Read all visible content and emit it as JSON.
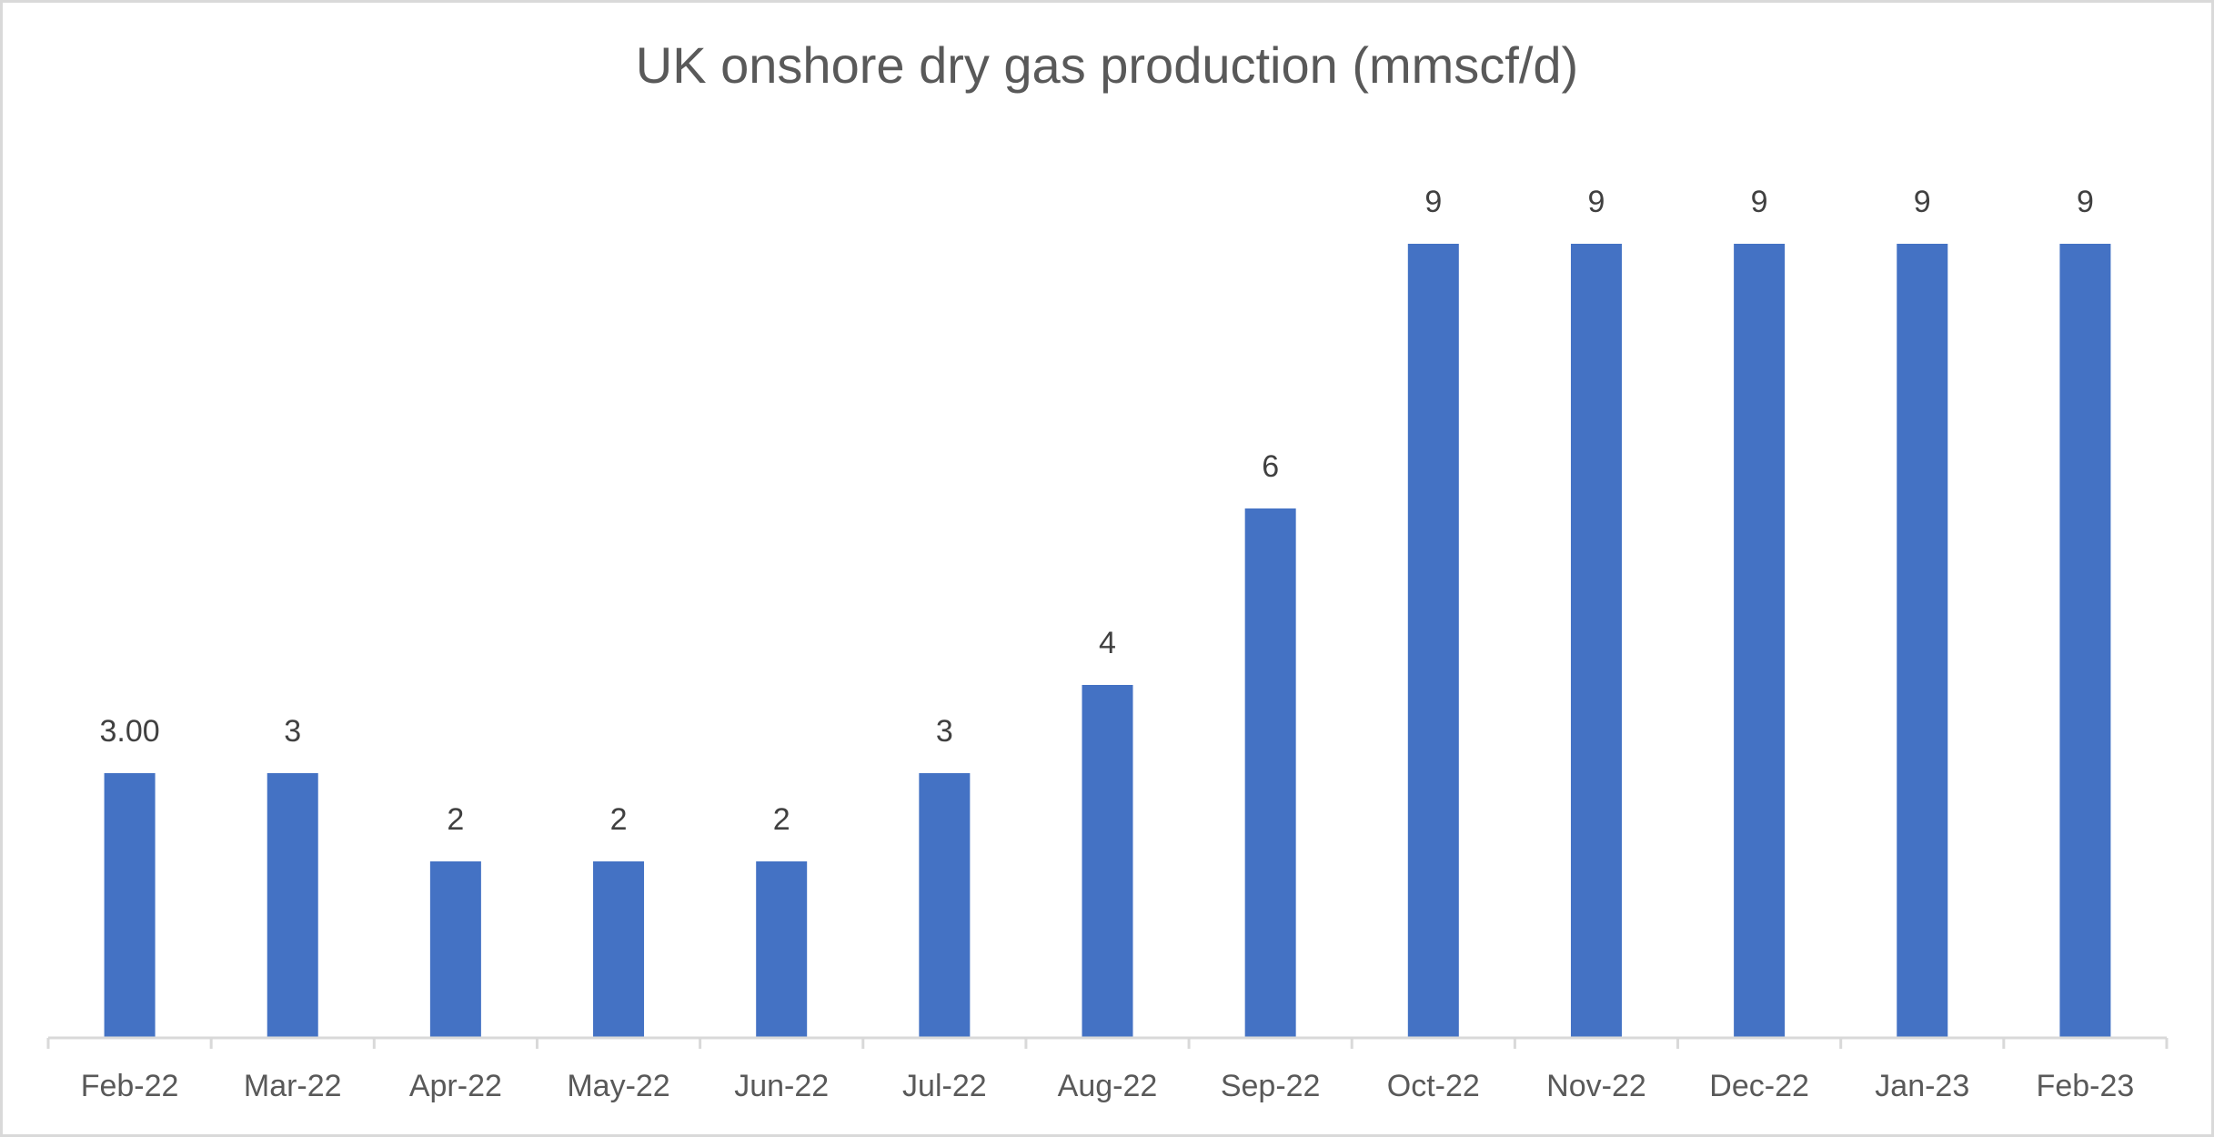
{
  "chart_data": {
    "type": "bar",
    "title": "UK onshore dry gas production (mmscf/d)",
    "categories": [
      "Feb-22",
      "Mar-22",
      "Apr-22",
      "May-22",
      "Jun-22",
      "Jul-22",
      "Aug-22",
      "Sep-22",
      "Oct-22",
      "Nov-22",
      "Dec-22",
      "Jan-23",
      "Feb-23"
    ],
    "values": [
      3,
      3,
      2,
      2,
      2,
      3,
      4,
      6,
      9,
      9,
      9,
      9,
      9
    ],
    "value_labels": [
      "3.00",
      "3",
      "2",
      "2",
      "2",
      "3",
      "4",
      "6",
      "9",
      "9",
      "9",
      "9",
      "9"
    ],
    "color": "#4472c4"
  }
}
